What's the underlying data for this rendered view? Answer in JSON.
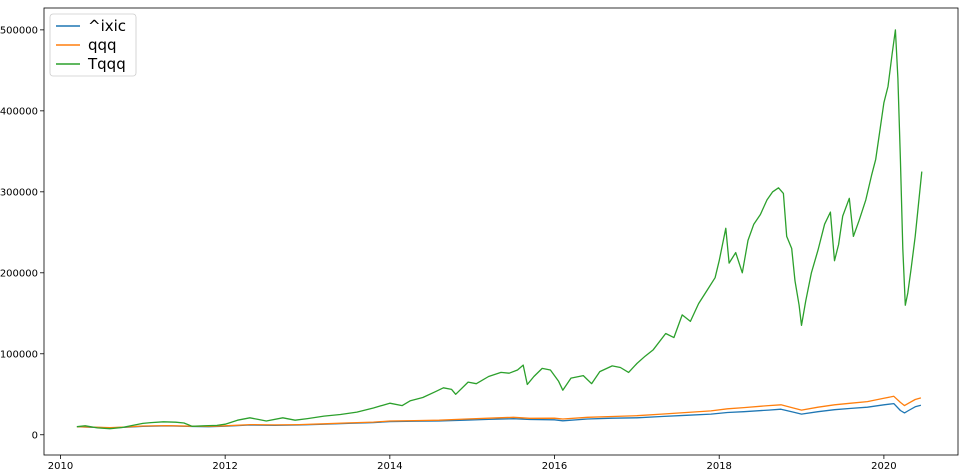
{
  "chart_data": {
    "type": "line",
    "title": "",
    "xlabel": "",
    "ylabel": "",
    "grid": false,
    "legend_placement": "top-left",
    "xlim": [
      2009.8,
      2020.9
    ],
    "ylim": [
      -25000,
      527000
    ],
    "x_ticks": [
      {
        "value": 2010,
        "label": "2010"
      },
      {
        "value": 2012,
        "label": "2012"
      },
      {
        "value": 2014,
        "label": "2014"
      },
      {
        "value": 2016,
        "label": "2016"
      },
      {
        "value": 2018,
        "label": "2018"
      },
      {
        "value": 2020,
        "label": "2020"
      }
    ],
    "y_ticks": [
      {
        "value": 0,
        "label": "0"
      },
      {
        "value": 100000,
        "label": "100000"
      },
      {
        "value": 200000,
        "label": "200000"
      },
      {
        "value": 300000,
        "label": "300000"
      },
      {
        "value": 400000,
        "label": "400000"
      },
      {
        "value": 500000,
        "label": "500000"
      }
    ],
    "series": [
      {
        "name": "^ixic",
        "color": "#1f77b4",
        "points": [
          [
            2010.2,
            10000
          ],
          [
            2010.4,
            9200
          ],
          [
            2010.6,
            8500
          ],
          [
            2010.8,
            9300
          ],
          [
            2011.0,
            10500
          ],
          [
            2011.3,
            11000
          ],
          [
            2011.6,
            10200
          ],
          [
            2011.8,
            9900
          ],
          [
            2012.0,
            10600
          ],
          [
            2012.3,
            12000
          ],
          [
            2012.6,
            11600
          ],
          [
            2012.9,
            12100
          ],
          [
            2013.2,
            13000
          ],
          [
            2013.5,
            14000
          ],
          [
            2013.8,
            15000
          ],
          [
            2014.0,
            16300
          ],
          [
            2014.3,
            16800
          ],
          [
            2014.6,
            17000
          ],
          [
            2014.9,
            18000
          ],
          [
            2015.2,
            19000
          ],
          [
            2015.5,
            19800
          ],
          [
            2015.7,
            18800
          ],
          [
            2016.0,
            18500
          ],
          [
            2016.1,
            17200
          ],
          [
            2016.4,
            19500
          ],
          [
            2016.7,
            20500
          ],
          [
            2017.0,
            21000
          ],
          [
            2017.3,
            22500
          ],
          [
            2017.6,
            24000
          ],
          [
            2017.9,
            25500
          ],
          [
            2018.1,
            27500
          ],
          [
            2018.3,
            28500
          ],
          [
            2018.6,
            30500
          ],
          [
            2018.75,
            31500
          ],
          [
            2018.9,
            28000
          ],
          [
            2019.0,
            25500
          ],
          [
            2019.2,
            28500
          ],
          [
            2019.4,
            31000
          ],
          [
            2019.6,
            32500
          ],
          [
            2019.8,
            34000
          ],
          [
            2020.0,
            37000
          ],
          [
            2020.12,
            38500
          ],
          [
            2020.2,
            30000
          ],
          [
            2020.25,
            27000
          ],
          [
            2020.3,
            30000
          ],
          [
            2020.38,
            34500
          ],
          [
            2020.45,
            36500
          ]
        ]
      },
      {
        "name": "qqq",
        "color": "#ff7f0e",
        "points": [
          [
            2010.2,
            10000
          ],
          [
            2010.4,
            9400
          ],
          [
            2010.6,
            8800
          ],
          [
            2010.8,
            9600
          ],
          [
            2011.0,
            10800
          ],
          [
            2011.3,
            11300
          ],
          [
            2011.6,
            10600
          ],
          [
            2011.8,
            10300
          ],
          [
            2012.0,
            11000
          ],
          [
            2012.3,
            12500
          ],
          [
            2012.6,
            12200
          ],
          [
            2012.9,
            12600
          ],
          [
            2013.2,
            13500
          ],
          [
            2013.5,
            14600
          ],
          [
            2013.8,
            15600
          ],
          [
            2014.0,
            17000
          ],
          [
            2014.3,
            17500
          ],
          [
            2014.6,
            18000
          ],
          [
            2014.9,
            19300
          ],
          [
            2015.2,
            20500
          ],
          [
            2015.5,
            21500
          ],
          [
            2015.7,
            20300
          ],
          [
            2016.0,
            20500
          ],
          [
            2016.1,
            19500
          ],
          [
            2016.4,
            21500
          ],
          [
            2016.7,
            22500
          ],
          [
            2017.0,
            23500
          ],
          [
            2017.3,
            25500
          ],
          [
            2017.6,
            27500
          ],
          [
            2017.9,
            29500
          ],
          [
            2018.1,
            32000
          ],
          [
            2018.3,
            33500
          ],
          [
            2018.6,
            36000
          ],
          [
            2018.75,
            37000
          ],
          [
            2018.9,
            33000
          ],
          [
            2019.0,
            30500
          ],
          [
            2019.2,
            34000
          ],
          [
            2019.4,
            37000
          ],
          [
            2019.6,
            39000
          ],
          [
            2019.8,
            41000
          ],
          [
            2020.0,
            45000
          ],
          [
            2020.12,
            47500
          ],
          [
            2020.2,
            40000
          ],
          [
            2020.25,
            36000
          ],
          [
            2020.3,
            39000
          ],
          [
            2020.38,
            43500
          ],
          [
            2020.45,
            45500
          ]
        ]
      },
      {
        "name": "Tqqq",
        "color": "#2ca02c",
        "points": [
          [
            2010.2,
            10000
          ],
          [
            2010.3,
            11000
          ],
          [
            2010.45,
            8500
          ],
          [
            2010.6,
            7500
          ],
          [
            2010.75,
            9000
          ],
          [
            2010.9,
            12000
          ],
          [
            2011.0,
            14000
          ],
          [
            2011.1,
            15000
          ],
          [
            2011.25,
            16000
          ],
          [
            2011.4,
            15500
          ],
          [
            2011.5,
            14500
          ],
          [
            2011.6,
            10500
          ],
          [
            2011.75,
            11000
          ],
          [
            2011.9,
            11500
          ],
          [
            2012.0,
            13000
          ],
          [
            2012.15,
            18000
          ],
          [
            2012.3,
            21000
          ],
          [
            2012.4,
            19000
          ],
          [
            2012.5,
            17000
          ],
          [
            2012.7,
            21000
          ],
          [
            2012.85,
            18000
          ],
          [
            2013.0,
            20000
          ],
          [
            2013.2,
            23000
          ],
          [
            2013.4,
            25000
          ],
          [
            2013.6,
            28000
          ],
          [
            2013.8,
            33000
          ],
          [
            2014.0,
            39000
          ],
          [
            2014.15,
            36000
          ],
          [
            2014.25,
            42000
          ],
          [
            2014.4,
            46000
          ],
          [
            2014.55,
            53000
          ],
          [
            2014.65,
            58000
          ],
          [
            2014.75,
            56000
          ],
          [
            2014.8,
            50000
          ],
          [
            2014.95,
            65000
          ],
          [
            2015.05,
            63000
          ],
          [
            2015.2,
            72000
          ],
          [
            2015.35,
            77000
          ],
          [
            2015.45,
            76000
          ],
          [
            2015.55,
            80000
          ],
          [
            2015.62,
            86000
          ],
          [
            2015.67,
            62000
          ],
          [
            2015.75,
            72000
          ],
          [
            2015.85,
            82000
          ],
          [
            2015.95,
            80000
          ],
          [
            2016.05,
            66000
          ],
          [
            2016.1,
            55000
          ],
          [
            2016.2,
            70000
          ],
          [
            2016.35,
            73000
          ],
          [
            2016.45,
            63000
          ],
          [
            2016.55,
            78000
          ],
          [
            2016.7,
            85000
          ],
          [
            2016.8,
            83000
          ],
          [
            2016.9,
            77000
          ],
          [
            2017.0,
            88000
          ],
          [
            2017.1,
            97000
          ],
          [
            2017.2,
            105000
          ],
          [
            2017.35,
            125000
          ],
          [
            2017.45,
            120000
          ],
          [
            2017.55,
            148000
          ],
          [
            2017.65,
            140000
          ],
          [
            2017.75,
            162000
          ],
          [
            2017.85,
            178000
          ],
          [
            2017.95,
            194000
          ],
          [
            2018.0,
            215000
          ],
          [
            2018.08,
            255000
          ],
          [
            2018.12,
            212000
          ],
          [
            2018.2,
            225000
          ],
          [
            2018.28,
            200000
          ],
          [
            2018.35,
            240000
          ],
          [
            2018.42,
            260000
          ],
          [
            2018.5,
            272000
          ],
          [
            2018.58,
            290000
          ],
          [
            2018.65,
            300000
          ],
          [
            2018.72,
            305000
          ],
          [
            2018.78,
            298000
          ],
          [
            2018.82,
            245000
          ],
          [
            2018.88,
            230000
          ],
          [
            2018.92,
            190000
          ],
          [
            2018.97,
            160000
          ],
          [
            2019.0,
            135000
          ],
          [
            2019.05,
            165000
          ],
          [
            2019.12,
            200000
          ],
          [
            2019.2,
            228000
          ],
          [
            2019.28,
            260000
          ],
          [
            2019.35,
            275000
          ],
          [
            2019.4,
            215000
          ],
          [
            2019.45,
            235000
          ],
          [
            2019.5,
            270000
          ],
          [
            2019.58,
            292000
          ],
          [
            2019.63,
            245000
          ],
          [
            2019.7,
            265000
          ],
          [
            2019.78,
            290000
          ],
          [
            2019.85,
            320000
          ],
          [
            2019.9,
            340000
          ],
          [
            2019.95,
            375000
          ],
          [
            2020.0,
            410000
          ],
          [
            2020.05,
            430000
          ],
          [
            2020.1,
            470000
          ],
          [
            2020.14,
            500000
          ],
          [
            2020.17,
            440000
          ],
          [
            2020.2,
            340000
          ],
          [
            2020.23,
            230000
          ],
          [
            2020.26,
            160000
          ],
          [
            2020.29,
            175000
          ],
          [
            2020.33,
            205000
          ],
          [
            2020.38,
            245000
          ],
          [
            2020.42,
            285000
          ],
          [
            2020.46,
            325000
          ]
        ]
      }
    ]
  }
}
